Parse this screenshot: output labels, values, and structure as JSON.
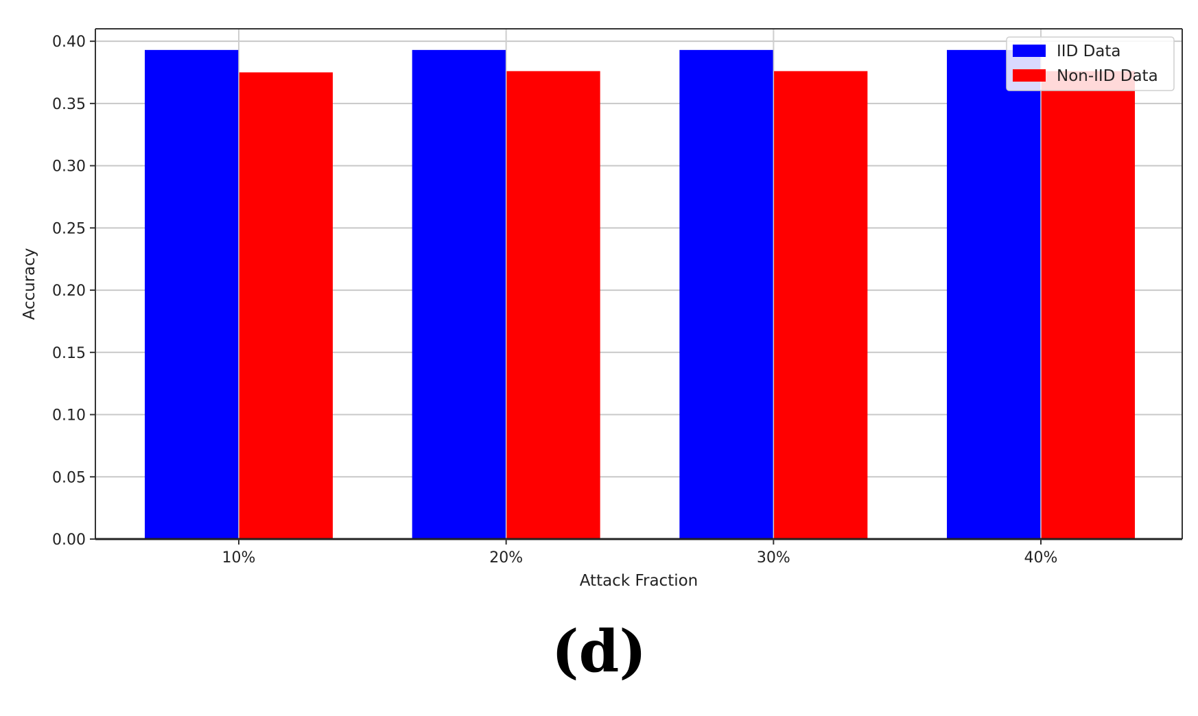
{
  "chart_data": {
    "type": "bar",
    "categories": [
      "10%",
      "20%",
      "30%",
      "40%"
    ],
    "series": [
      {
        "name": "IID Data",
        "color": "#0000ff",
        "values": [
          0.393,
          0.393,
          0.393,
          0.393
        ]
      },
      {
        "name": "Non-IID Data",
        "color": "#ff0000",
        "values": [
          0.375,
          0.376,
          0.376,
          0.376
        ]
      }
    ],
    "xlabel": "Attack Fraction",
    "ylabel": "Accuracy",
    "ylim": [
      0,
      0.41
    ],
    "yticks": [
      "0.00",
      "0.05",
      "0.10",
      "0.15",
      "0.20",
      "0.25",
      "0.30",
      "0.35",
      "0.40"
    ],
    "grid": true,
    "legend_position": "top-right"
  },
  "caption": "(d)"
}
